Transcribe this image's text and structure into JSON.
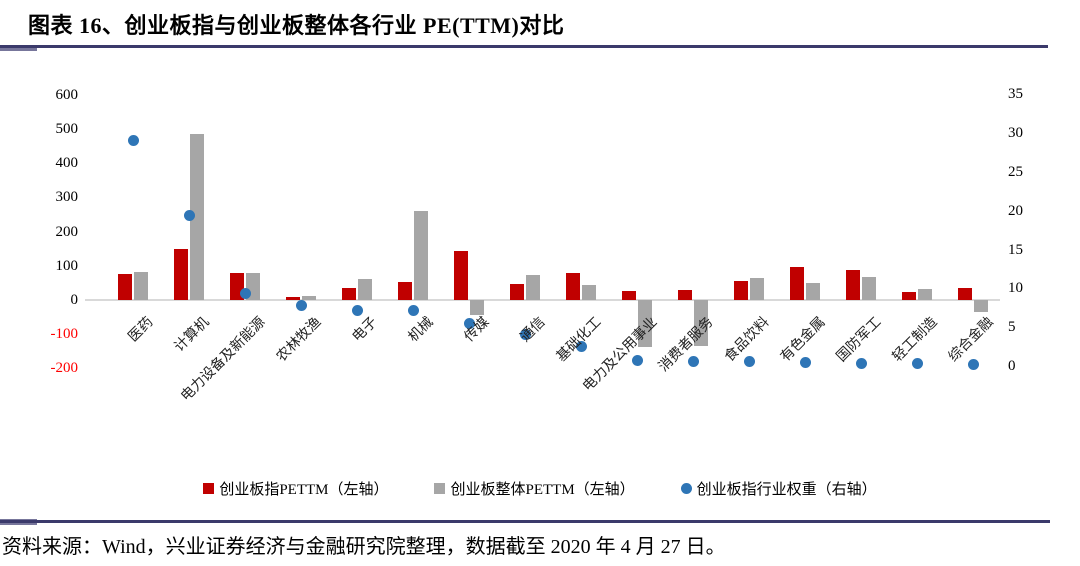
{
  "title": "图表 16、创业板指与创业板整体各行业 PE(TTM)对比",
  "source": "资料来源：Wind，兴业证券经济与金融研究院整理，数据截至 2020 年 4 月 27 日。",
  "colors": {
    "bar_index": "#C00000",
    "bar_overall": "#A6A6A6",
    "dot_weight": "#2E75B6",
    "rule": "#3B3A6B",
    "negative_tick": "#FF0000",
    "baseline": "#D9D9D9"
  },
  "chart_data": {
    "type": "bar",
    "title": "创业板指与创业板整体各行业 PE(TTM)对比",
    "categories": [
      "医药",
      "计算机",
      "电力设备及新能源",
      "农林牧渔",
      "电子",
      "机械",
      "传媒",
      "通信",
      "基础化工",
      "电力及公用事业",
      "消费者服务",
      "食品饮料",
      "有色金属",
      "国防军工",
      "轻工制造",
      "综合金融"
    ],
    "series": [
      {
        "name": "创业板指PETTM（左轴）",
        "type": "bar",
        "axis": "left",
        "color": "#C00000",
        "values": [
          76,
          150,
          79,
          9,
          35,
          52,
          143,
          48,
          79,
          26,
          28,
          57,
          96,
          87,
          24,
          34
        ]
      },
      {
        "name": "创业板整体PETTM（左轴）",
        "type": "bar",
        "axis": "left",
        "color": "#A6A6A6",
        "values": [
          82,
          485,
          80,
          12,
          62,
          260,
          -43,
          72,
          45,
          -139,
          -136,
          65,
          49,
          68,
          31,
          -36
        ]
      },
      {
        "name": "创业板指行业权重（右轴）",
        "type": "scatter",
        "axis": "right",
        "color": "#2E75B6",
        "values": [
          29.1,
          19.4,
          9.4,
          7.8,
          7.2,
          7.2,
          5.5,
          4.1,
          2.5,
          0.7,
          0.6,
          0.6,
          0.4,
          0.3,
          0.3,
          0.2
        ]
      }
    ],
    "left_axis": {
      "min": -200,
      "max": 600,
      "step": 100,
      "ticks": [
        600,
        500,
        400,
        300,
        200,
        100,
        0,
        -100,
        -200
      ]
    },
    "right_axis": {
      "min": 0,
      "max": 35,
      "step": 5,
      "ticks": [
        35,
        30,
        25,
        20,
        15,
        10,
        5,
        0
      ]
    },
    "legend_position": "bottom",
    "grid": false
  }
}
